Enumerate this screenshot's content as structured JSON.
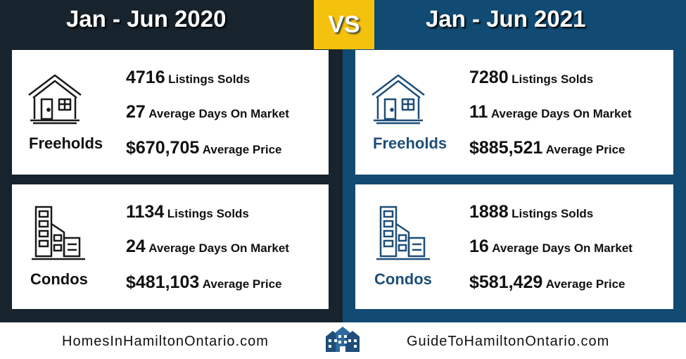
{
  "header": {
    "left_period": "Jan - Jun 2020",
    "vs": "VS",
    "right_period": "Jan - Jun 2021"
  },
  "periods": [
    {
      "freeholds": {
        "category": "Freeholds",
        "listings_sold": "4716",
        "listings_label": "Listings Solds",
        "avg_days": "27",
        "avg_days_label": "Average Days On Market",
        "avg_price": "$670,705",
        "avg_price_label": "Average Price"
      },
      "condos": {
        "category": "Condos",
        "listings_sold": "1134",
        "listings_label": "Listings Solds",
        "avg_days": "24",
        "avg_days_label": "Average Days On Market",
        "avg_price": "$481,103",
        "avg_price_label": "Average Price"
      }
    },
    {
      "freeholds": {
        "category": "Freeholds",
        "listings_sold": "7280",
        "listings_label": "Listings Solds",
        "avg_days": "11",
        "avg_days_label": "Average Days On Market",
        "avg_price": "$885,521",
        "avg_price_label": "Average Price"
      },
      "condos": {
        "category": "Condos",
        "listings_sold": "1888",
        "listings_label": "Listings Solds",
        "avg_days": "16",
        "avg_days_label": "Average Days On Market",
        "avg_price": "$581,429",
        "avg_price_label": "Average Price"
      }
    }
  ],
  "footer": {
    "left_site": "HomesInHamiltonOntario.com",
    "right_site": "GuideToHamiltonOntario.com"
  },
  "icons": {
    "house": "house-icon",
    "condo": "condo-building-icon",
    "logo": "city-buildings-logo-icon"
  },
  "colors": {
    "left_panel": "#17232d",
    "right_panel": "#114a72",
    "vs_badge": "#f4c20d",
    "right_icon": "#1e4e79",
    "left_icon": "#1a1a1a"
  }
}
